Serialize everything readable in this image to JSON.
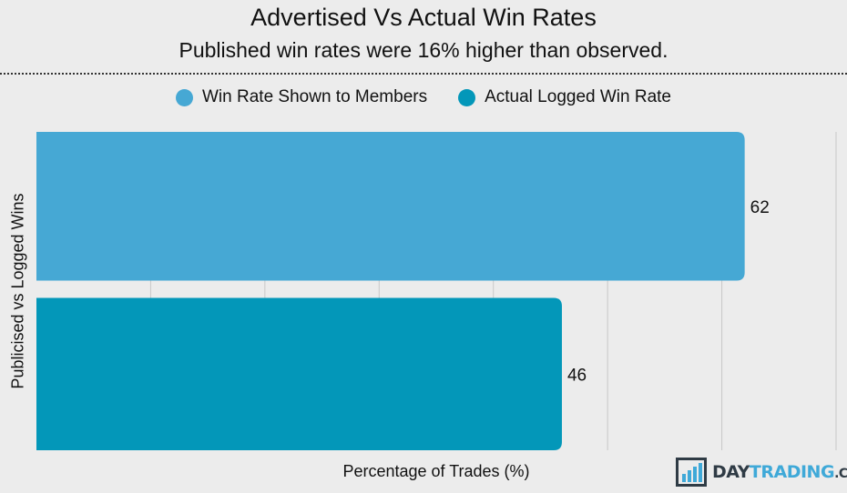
{
  "chart_data": {
    "type": "bar",
    "orientation": "horizontal",
    "title": "Advertised Vs Actual Win Rates",
    "subtitle": "Published win rates were 16% higher than observed.",
    "xlabel": "Percentage of Trades (%)",
    "ylabel": "Publicised vs Logged Wins",
    "xlim": [
      0,
      70
    ],
    "grid": true,
    "legend_position": "top",
    "series": [
      {
        "name": "Win Rate Shown to Members",
        "value": 62,
        "label": "62",
        "color": "#46a8d4"
      },
      {
        "name": "Actual Logged Win Rate",
        "value": 46,
        "label": "46",
        "color": "#0397b9"
      }
    ]
  },
  "legend": {
    "items": [
      {
        "label": "Win Rate Shown to Members",
        "color": "#46a8d4"
      },
      {
        "label": "Actual Logged Win Rate",
        "color": "#0397b9"
      }
    ]
  },
  "brand": {
    "logo_main": "DAY",
    "logo_accent": "TRADING",
    "logo_suffix": ".COM",
    "icon": "bar-chart-icon"
  }
}
